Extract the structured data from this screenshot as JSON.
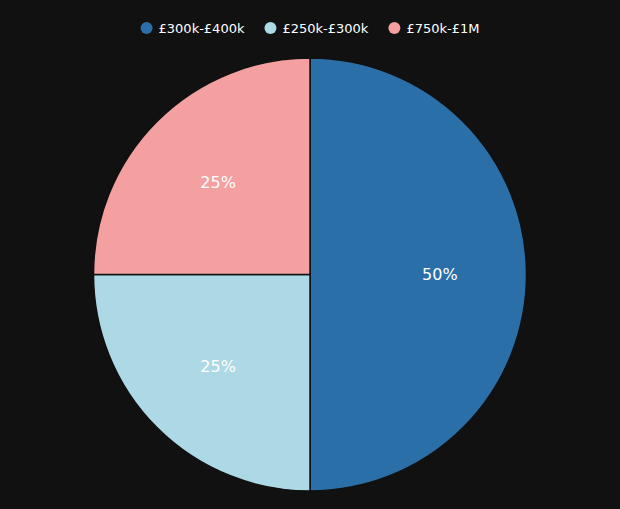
{
  "chart_data": {
    "type": "pie",
    "categories": [
      "£300k-£400k",
      "£250k-£300k",
      "£750k-£1M"
    ],
    "values": [
      50,
      25,
      25
    ],
    "value_labels": [
      "50%",
      "25%",
      "25%"
    ],
    "colors": [
      "#2a6fa8",
      "#add8e6",
      "#f4a0a0"
    ],
    "data_labels": true,
    "legend": "top"
  }
}
